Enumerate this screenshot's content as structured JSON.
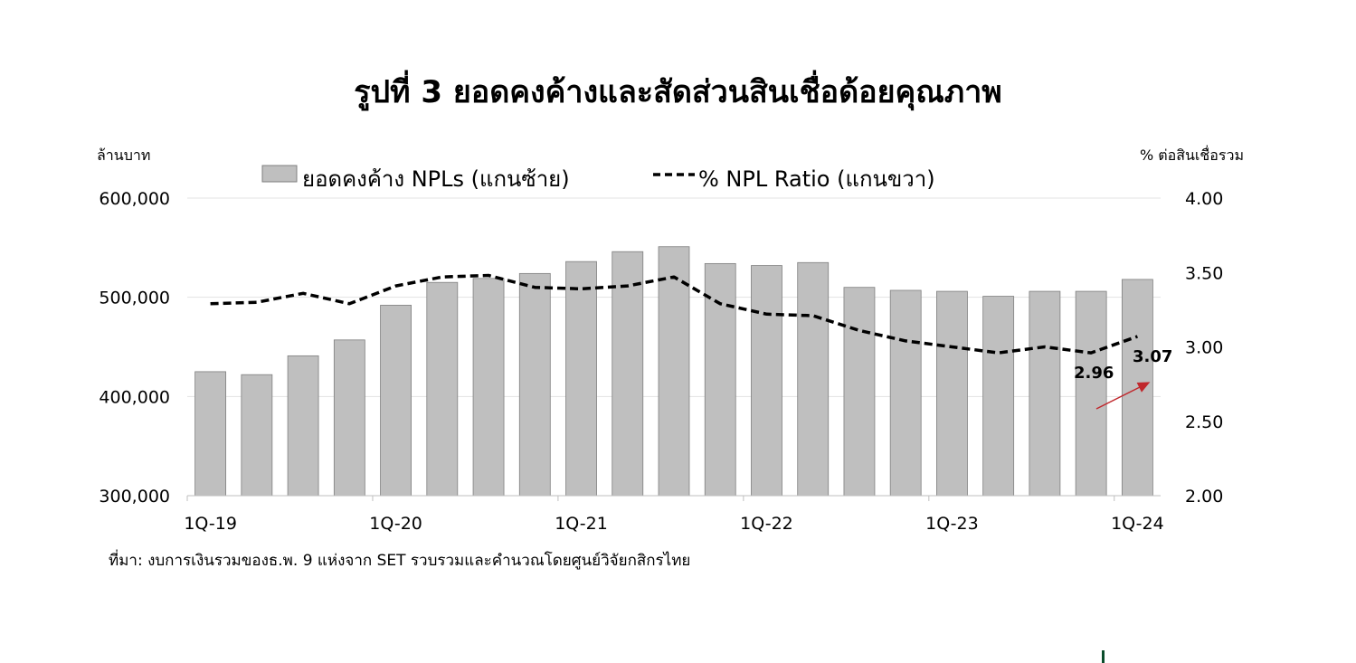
{
  "chart_data": {
    "type": "bar",
    "title": "รูปที่ 3 ยอดคงค้างและสัดส่วนสินเชื่อด้อยคุณภาพ",
    "ylabel": "ล้านบาท",
    "y2label": "% ต่อสินเชื่อรวม",
    "ylim": [
      300000,
      600000
    ],
    "y2lim": [
      2.0,
      4.0
    ],
    "yticks": [
      "600,000",
      "500,000",
      "400,000",
      "300,000"
    ],
    "y2ticks": [
      "4.00",
      "3.50",
      "3.00",
      "2.50",
      "2.00"
    ],
    "x_tick_labels": [
      "1Q-19",
      "1Q-20",
      "1Q-21",
      "1Q-22",
      "1Q-23",
      "1Q-24"
    ],
    "categories": [
      "1Q-19",
      "2Q-19",
      "3Q-19",
      "4Q-19",
      "1Q-20",
      "2Q-20",
      "3Q-20",
      "4Q-20",
      "1Q-21",
      "2Q-21",
      "3Q-21",
      "4Q-21",
      "1Q-22",
      "2Q-22",
      "3Q-22",
      "4Q-22",
      "1Q-23",
      "2Q-23",
      "3Q-23",
      "4Q-23",
      "1Q-24"
    ],
    "series": [
      {
        "name": "ยอดคงค้าง NPLs (แกนซ้าย)",
        "type": "bar",
        "axis": "left",
        "color": "#bfbfbf",
        "values": [
          425000,
          422000,
          441000,
          457000,
          492000,
          515000,
          519000,
          524000,
          536000,
          546000,
          551000,
          534000,
          532000,
          535000,
          510000,
          507000,
          506000,
          501000,
          506000,
          506000,
          518000
        ]
      },
      {
        "name": "% NPL Ratio (แกนขวา)",
        "type": "line",
        "axis": "right",
        "style": "dashed",
        "color": "#000000",
        "values": [
          3.29,
          3.3,
          3.36,
          3.29,
          3.41,
          3.47,
          3.48,
          3.4,
          3.39,
          3.41,
          3.47,
          3.29,
          3.22,
          3.21,
          3.11,
          3.04,
          3.0,
          2.96,
          3.0,
          2.96,
          3.07
        ]
      }
    ],
    "annotations": [
      {
        "text": "2.96"
      },
      {
        "text": "3.07"
      }
    ],
    "legend_position": "top"
  },
  "source_note": "ที่มา: งบการเงินรวมของธ.พ. 9 แห่งจาก SET รวบรวมและคำนวณโดยศูนย์วิจัยกสิกรไทย",
  "colors": {
    "bar": "#bfbfbf",
    "bar_stroke": "#7f7f7f",
    "line": "#000000",
    "arrow": "#c0282d",
    "corner_mark": "#0b4d2c"
  }
}
